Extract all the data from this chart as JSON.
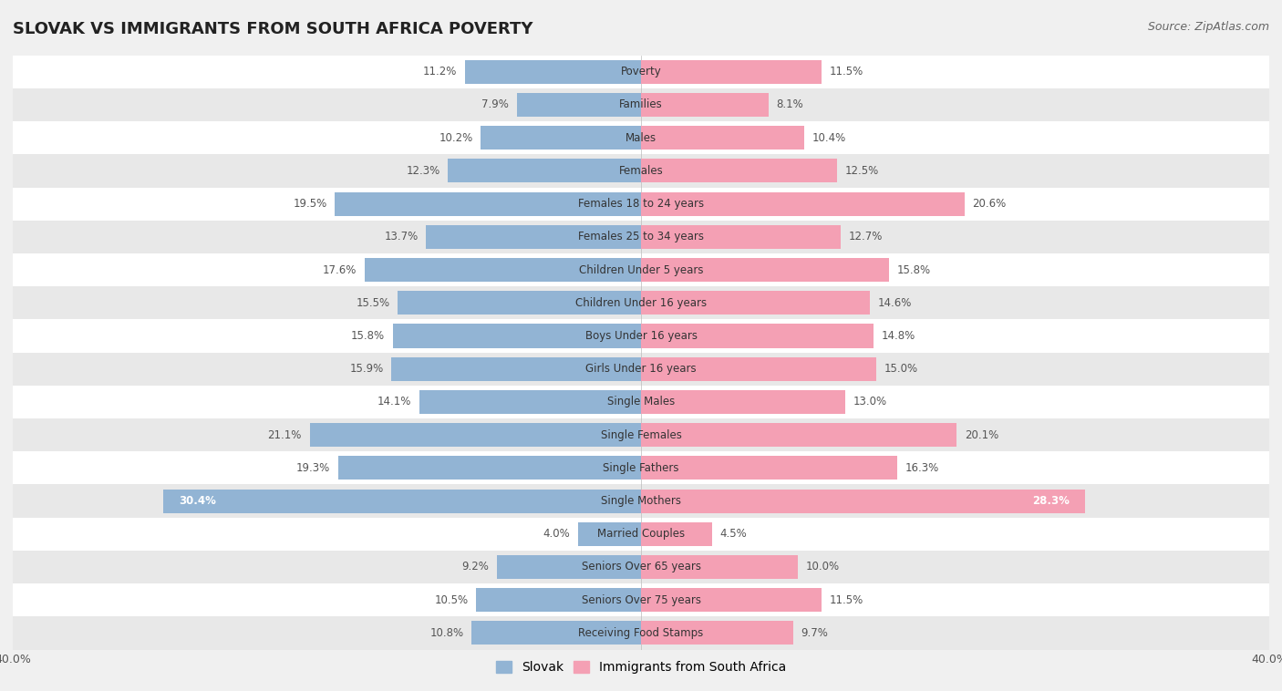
{
  "title": "SLOVAK VS IMMIGRANTS FROM SOUTH AFRICA POVERTY",
  "source": "Source: ZipAtlas.com",
  "categories": [
    "Poverty",
    "Families",
    "Males",
    "Females",
    "Females 18 to 24 years",
    "Females 25 to 34 years",
    "Children Under 5 years",
    "Children Under 16 years",
    "Boys Under 16 years",
    "Girls Under 16 years",
    "Single Males",
    "Single Females",
    "Single Fathers",
    "Single Mothers",
    "Married Couples",
    "Seniors Over 65 years",
    "Seniors Over 75 years",
    "Receiving Food Stamps"
  ],
  "slovak": [
    11.2,
    7.9,
    10.2,
    12.3,
    19.5,
    13.7,
    17.6,
    15.5,
    15.8,
    15.9,
    14.1,
    21.1,
    19.3,
    30.4,
    4.0,
    9.2,
    10.5,
    10.8
  ],
  "immigrants": [
    11.5,
    8.1,
    10.4,
    12.5,
    20.6,
    12.7,
    15.8,
    14.6,
    14.8,
    15.0,
    13.0,
    20.1,
    16.3,
    28.3,
    4.5,
    10.0,
    11.5,
    9.7
  ],
  "slovak_color": "#92b4d4",
  "immigrant_color": "#f4a0b4",
  "slovak_label": "Slovak",
  "immigrant_label": "Immigrants from South Africa",
  "xlim": 40.0,
  "background_color": "#f0f0f0",
  "row_bg_light": "#ffffff",
  "row_bg_dark": "#e8e8e8",
  "label_color_inside": "#ffffff",
  "label_color_outside": "#555555"
}
